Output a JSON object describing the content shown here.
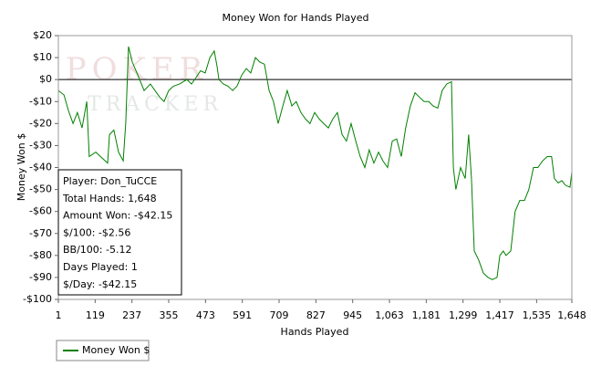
{
  "chart_data": {
    "type": "line",
    "title": "Money Won for Hands Played",
    "xlabel": "Hands Played",
    "ylabel": "Money Won $",
    "watermark": [
      "POKER",
      "TRACKER"
    ],
    "xlim": [
      1,
      1648
    ],
    "ylim": [
      -100,
      20
    ],
    "xticks": [
      1,
      119,
      237,
      355,
      473,
      591,
      709,
      827,
      945,
      {
        "value": 1063,
        "label": "1,063"
      },
      {
        "value": 1181,
        "label": "1,181"
      },
      {
        "value": 1299,
        "label": "1,299"
      },
      {
        "value": 1417,
        "label": "1,417"
      },
      {
        "value": 1535,
        "label": "1,535"
      },
      {
        "value": 1648,
        "label": "1,648"
      }
    ],
    "yticks": [
      {
        "value": 20,
        "label": "$20"
      },
      {
        "value": 10,
        "label": "$10"
      },
      {
        "value": 0,
        "label": "$0"
      },
      {
        "value": -10,
        "label": "-$10"
      },
      {
        "value": -20,
        "label": "-$20"
      },
      {
        "value": -30,
        "label": "-$30"
      },
      {
        "value": -40,
        "label": "-$40"
      },
      {
        "value": -50,
        "label": "-$50"
      },
      {
        "value": -60,
        "label": "-$60"
      },
      {
        "value": -70,
        "label": "-$70"
      },
      {
        "value": -80,
        "label": "-$80"
      },
      {
        "value": -90,
        "label": "-$90"
      },
      {
        "value": -100,
        "label": "-$100"
      }
    ],
    "reference_line": 0,
    "x": [
      1,
      19,
      33,
      48,
      62,
      77,
      92,
      100,
      121,
      136,
      159,
      165,
      179,
      194,
      209,
      217,
      226,
      238,
      253,
      276,
      296,
      311,
      326,
      340,
      355,
      370,
      390,
      413,
      428,
      443,
      457,
      472,
      487,
      501,
      510,
      516,
      530,
      545,
      560,
      574,
      589,
      604,
      618,
      633,
      647,
      662,
      677,
      691,
      706,
      721,
      735,
      750,
      764,
      779,
      794,
      808,
      823,
      838,
      852,
      867,
      881,
      896,
      911,
      925,
      940,
      955,
      969,
      984,
      998,
      1013,
      1028,
      1042,
      1057,
      1072,
      1086,
      1101,
      1115,
      1130,
      1145,
      1159,
      1174,
      1189,
      1203,
      1218,
      1232,
      1247,
      1262,
      1268,
      1276,
      1291,
      1306,
      1317,
      1326,
      1335,
      1349,
      1364,
      1379,
      1393,
      1408,
      1417,
      1428,
      1437,
      1452,
      1466,
      1481,
      1496,
      1510,
      1525,
      1539,
      1554,
      1569,
      1583,
      1592,
      1604,
      1616,
      1627,
      1642,
      1648
    ],
    "series": [
      {
        "name": "Money Won $",
        "color": "#008000",
        "values": [
          -5,
          -7,
          -14,
          -20,
          -15,
          -22,
          -10,
          -35,
          -33,
          -35,
          -38,
          -25,
          -23,
          -33,
          -37,
          -20,
          15,
          8,
          3,
          -5,
          -2,
          -5,
          -8,
          -10,
          -5,
          -3,
          -2,
          0,
          -2,
          1,
          4,
          3,
          10,
          13,
          6,
          0,
          -2,
          -3,
          -5,
          -3,
          2,
          5,
          3,
          10,
          8,
          7,
          -5,
          -10,
          -20,
          -12,
          -5,
          -12,
          -10,
          -15,
          -18,
          -20,
          -15,
          -18,
          -20,
          -22,
          -18,
          -15,
          -25,
          -28,
          -20,
          -28,
          -35,
          -40,
          -32,
          -38,
          -33,
          -37,
          -40,
          -28,
          -27,
          -35,
          -22,
          -12,
          -6,
          -8,
          -10,
          -10,
          -12,
          -13,
          -5,
          -2,
          -1,
          -40,
          -50,
          -40,
          -45,
          -25,
          -45,
          -78,
          -82,
          -88,
          -90,
          -91,
          -90,
          -80,
          -78,
          -80,
          -78,
          -60,
          -55,
          -55,
          -50,
          -40,
          -40,
          -37,
          -35,
          -35,
          -45,
          -47,
          -46,
          -48,
          -49,
          -42
        ]
      }
    ],
    "info": [
      "Player: Don_TuCCE",
      "Total Hands: 1,648",
      "Amount Won: -$42.15",
      "$/100: -$2.56",
      "BB/100: -5.12",
      "Days Played: 1",
      "$/Day: -$42.15"
    ]
  }
}
